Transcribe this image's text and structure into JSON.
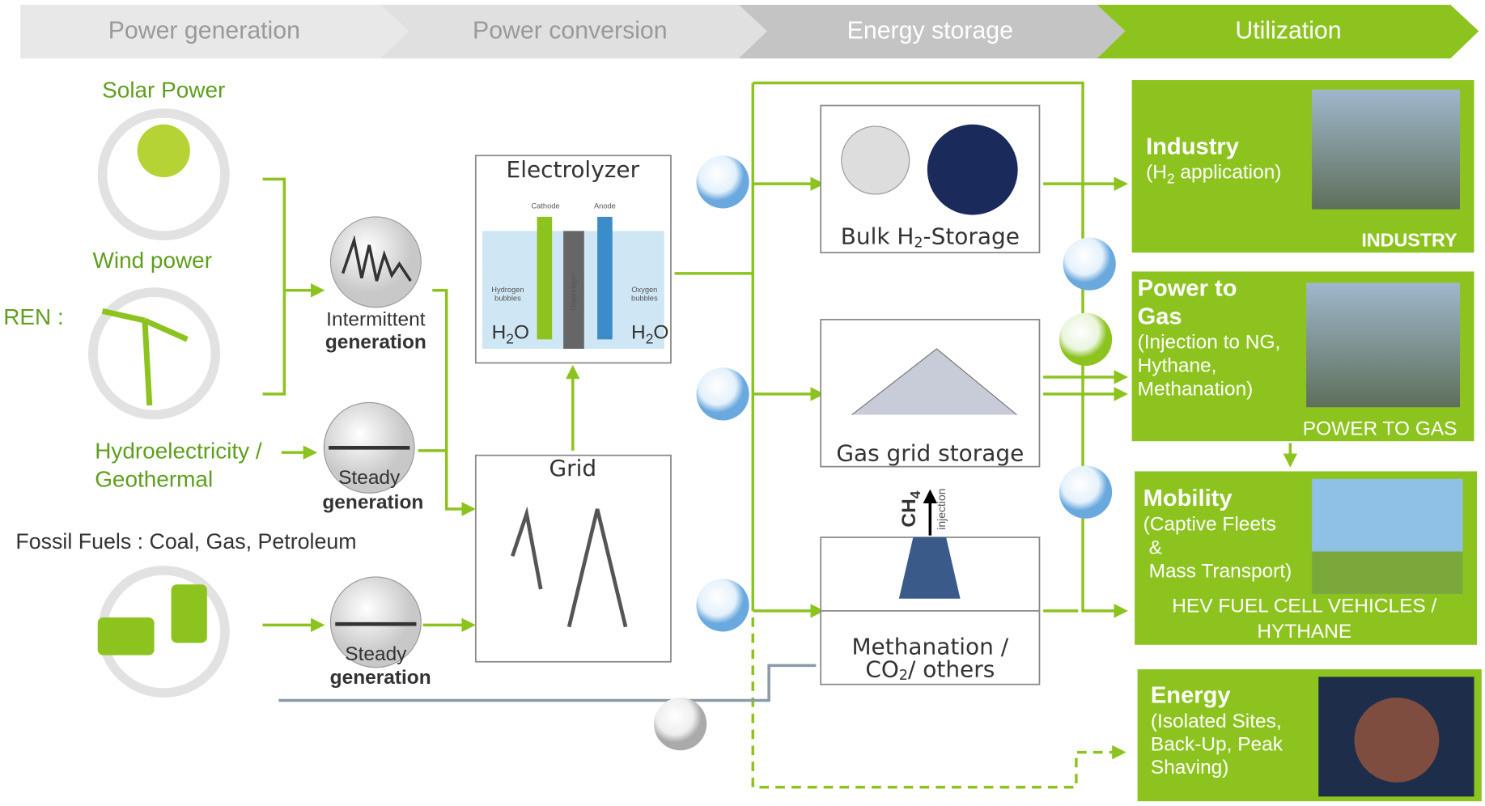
{
  "header": {
    "stages": [
      "Power generation",
      "Power conversion",
      "Energy storage",
      "Utilization"
    ]
  },
  "sources": {
    "solar": "Solar Power",
    "wind": "Wind power",
    "ren": "REN :",
    "hydro": [
      "Hydroelectricity /",
      "Geothermal"
    ],
    "fossil": "Fossil Fuels : Coal, Gas, Petroleum"
  },
  "generation": {
    "intermittent": [
      "Intermittent",
      "generation"
    ],
    "steady_hydro": [
      "Steady",
      "generation"
    ],
    "steady_fossil": [
      "Steady",
      "generation"
    ]
  },
  "conversion": {
    "electrolyzer": {
      "title": "Electrolyzer",
      "cathode": "Cathode",
      "anode": "Anode",
      "diaphragm": "Diaphragm",
      "hydrogen": [
        "Hydrogen",
        "bubbles"
      ],
      "oxygen": [
        "Oxygen",
        "bubbles"
      ],
      "water": [
        "H",
        "2",
        "O"
      ]
    },
    "grid": "Grid"
  },
  "storage": {
    "bulk": [
      "Bulk H",
      "2",
      "-Storage"
    ],
    "gas_grid": "Gas grid storage",
    "methanation": [
      "Methanation /",
      "CO",
      "2",
      "/ others"
    ],
    "ch4": [
      "CH",
      "4"
    ],
    "injection": "injection"
  },
  "utilization": {
    "industry": {
      "title": "Industry",
      "detail": [
        "(H",
        "2",
        " application)"
      ],
      "tag": "INDUSTRY"
    },
    "power_to_gas": {
      "title": [
        "Power to",
        "Gas"
      ],
      "detail": [
        "(Injection to NG,",
        "Hythane,",
        "Methanation)"
      ],
      "tag": "POWER TO GAS"
    },
    "mobility": {
      "title": "Mobility",
      "detail": [
        "(Captive Fleets",
        "&",
        "Mass Transport)"
      ],
      "tag": [
        "HEV FUEL CELL VEHICLES /",
        "HYTHANE"
      ]
    },
    "energy": {
      "title": "Energy",
      "detail": [
        "(Isolated Sites,",
        "Back-Up, Peak",
        "Shaving)"
      ]
    }
  }
}
